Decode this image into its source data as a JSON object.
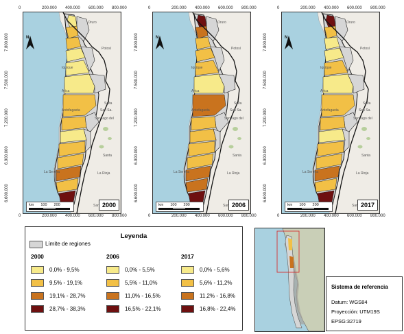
{
  "colors": {
    "sea": "#a9d1e0",
    "land": "#efece6",
    "region": "#d6d6d6",
    "c1": "#f7ea8a",
    "c2": "#f2c046",
    "c3": "#c9731e",
    "c4": "#6e1010",
    "frame": "#333333"
  },
  "axis": {
    "x_ticks": [
      "0",
      "200.000",
      "400.000",
      "600.000",
      "800.000"
    ],
    "y_ticks": [
      "7.800.000",
      "7.500.000",
      "7.200.000",
      "6.900.000",
      "6.600.000"
    ]
  },
  "maps": [
    {
      "year": "2000",
      "classes": [
        0,
        1,
        1,
        0,
        0,
        0,
        1,
        1,
        0,
        1,
        1,
        2,
        1,
        3
      ]
    },
    {
      "year": "2006",
      "classes": [
        3,
        2,
        1,
        1,
        1,
        0,
        2,
        1,
        1,
        1,
        1,
        2,
        2,
        3
      ]
    },
    {
      "year": "2017",
      "classes": [
        3,
        1,
        0,
        0,
        1,
        0,
        1,
        1,
        0,
        1,
        1,
        2,
        1,
        3
      ]
    }
  ],
  "place_labels": [
    "Oruro",
    "Potosí",
    "Arica",
    "Iquique",
    "Antofagasta",
    "Salta",
    "San Sa.",
    "Santiago del",
    "La Rioja",
    "La Serena",
    "San Juan",
    "Santa"
  ],
  "scalebar": {
    "labels": [
      "0",
      "100",
      "200"
    ],
    "unit": "km"
  },
  "north_label": "N",
  "legend": {
    "title": "Leyenda",
    "regions_label": "Límite de regiones",
    "columns": [
      {
        "year": "2000",
        "items": [
          "0,0% - 9,5%",
          "9,5% - 19,1%",
          "19,1% - 28,7%",
          "28,7% - 38,3%"
        ]
      },
      {
        "year": "2006",
        "items": [
          "0,0% - 5,5%",
          "5,5% - 11,0%",
          "11,0% - 16,5%",
          "16,5% - 22,1%"
        ]
      },
      {
        "year": "2017",
        "items": [
          "0,0% - 5,6%",
          "5,6% - 11,2%",
          "11,2% - 16,8%",
          "16,8% - 22,4%"
        ]
      }
    ]
  },
  "reference": {
    "title": "Sistema de referencia",
    "datum": "Datum: WGS84",
    "projection": "Proyección: UTM19S",
    "epsg": "EPSG:32719"
  }
}
